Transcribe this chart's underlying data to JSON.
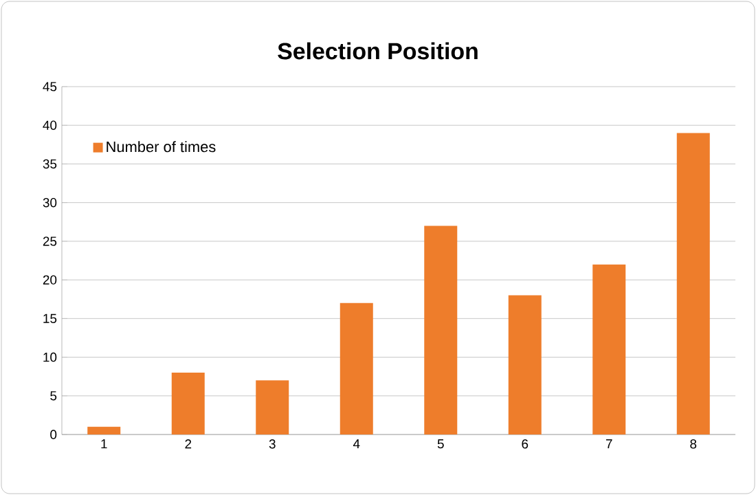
{
  "chart_data": {
    "type": "bar",
    "title": "Selection Position",
    "categories": [
      "1",
      "2",
      "3",
      "4",
      "5",
      "6",
      "7",
      "8"
    ],
    "series": [
      {
        "name": "Number of times",
        "color": "#ee7d2b",
        "values": [
          1,
          8,
          7,
          17,
          27,
          18,
          22,
          39
        ]
      }
    ],
    "ylim": [
      0,
      45
    ],
    "yticks": [
      0,
      5,
      10,
      15,
      20,
      25,
      30,
      35,
      40,
      45
    ],
    "grid": "y",
    "legend": "top left"
  }
}
